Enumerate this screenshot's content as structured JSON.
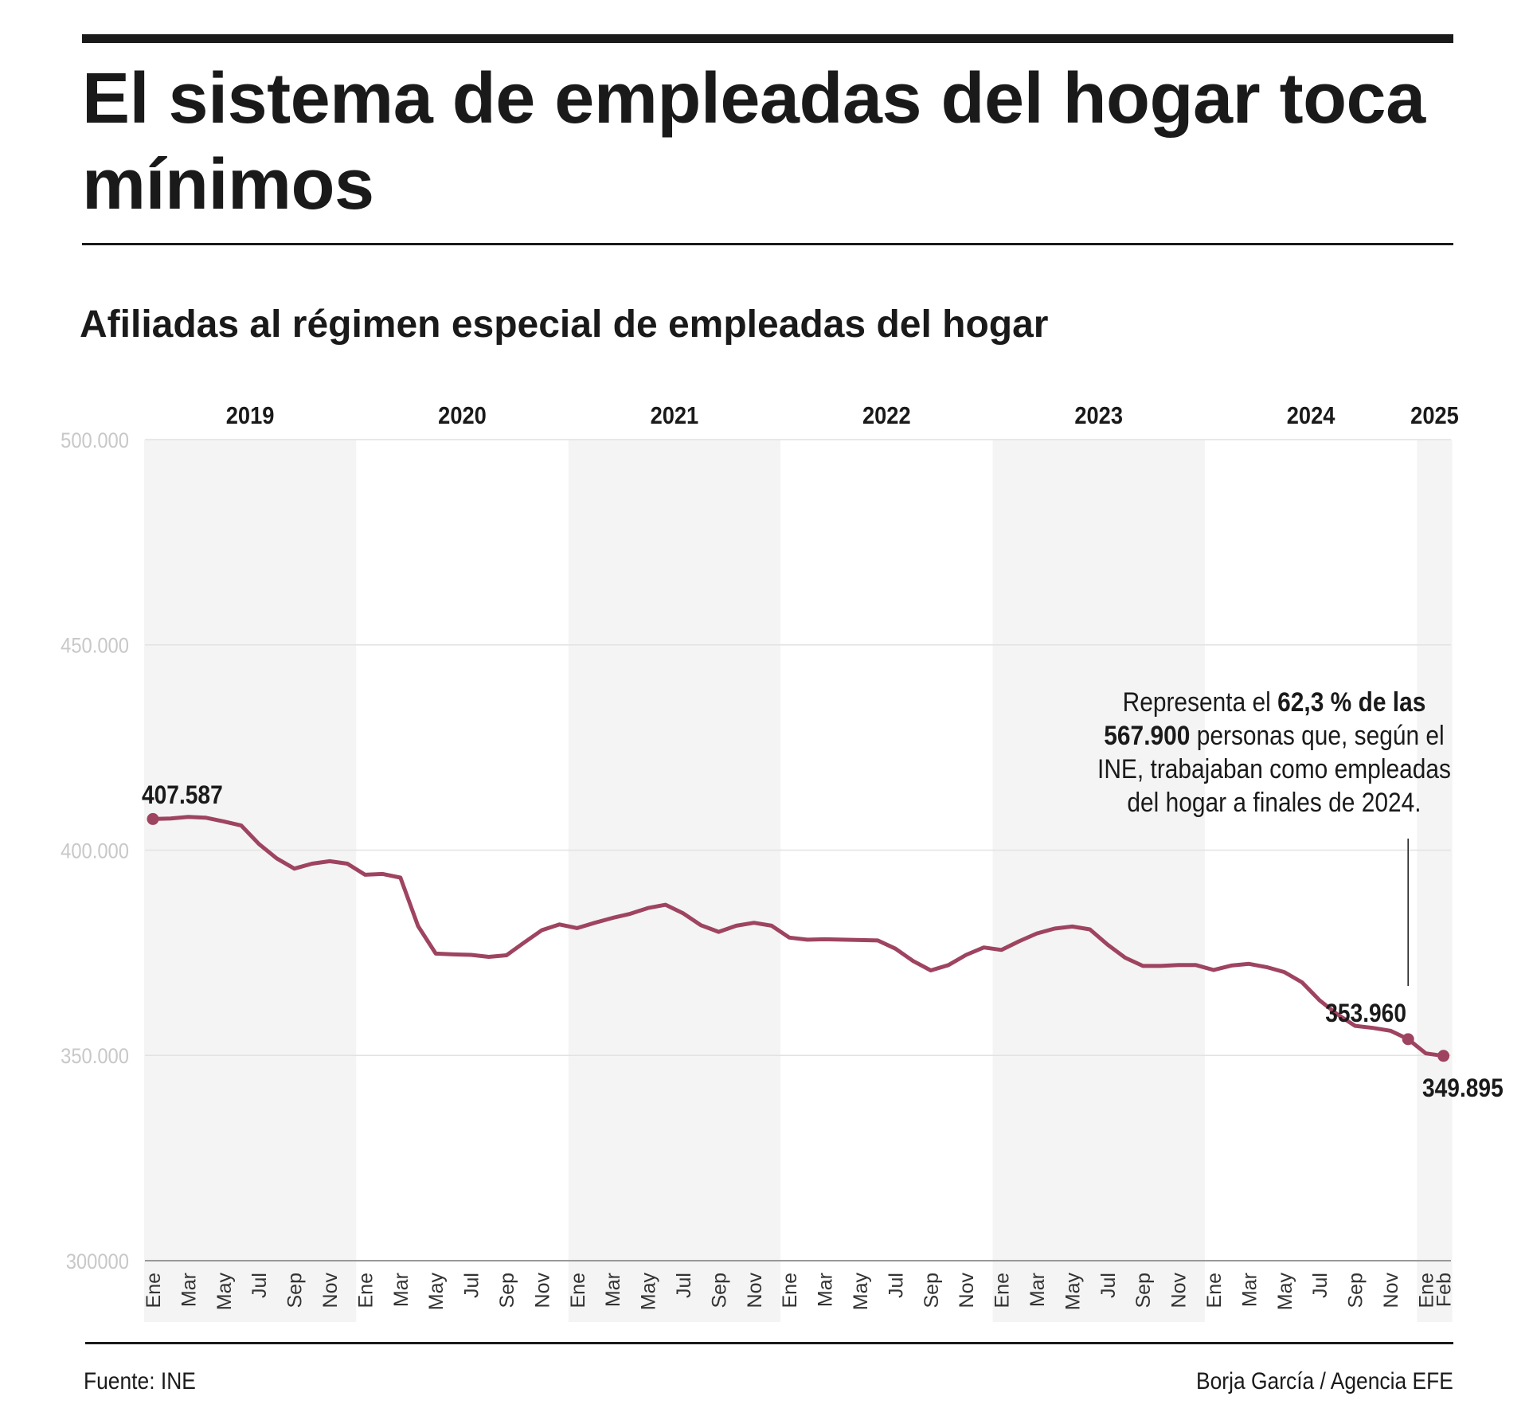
{
  "header": {
    "title": "El sistema de empleadas del hogar toca mínimos",
    "subtitle": "Afiliadas al régimen especial de empleadas del hogar"
  },
  "footer": {
    "source": "Fuente: INE",
    "credit": "Borja García / Agencia EFE"
  },
  "colors": {
    "line": "#9e4460",
    "band": "#f4f4f4",
    "grid": "#e2e2e2",
    "tick_text": "#c8c8c8",
    "month_text": "#333333"
  },
  "chart_data": {
    "type": "line",
    "title": "Afiliadas al régimen especial de empleadas del hogar",
    "ylim": [
      300000,
      500000
    ],
    "y_ticks": [
      {
        "value": 500000,
        "label": "500.000"
      },
      {
        "value": 450000,
        "label": "450.000"
      },
      {
        "value": 400000,
        "label": "400.000"
      },
      {
        "value": 350000,
        "label": "350.000"
      },
      {
        "value": 300000,
        "label": "300000"
      }
    ],
    "grid": true,
    "years": [
      "2019",
      "2020",
      "2021",
      "2022",
      "2023",
      "2024",
      "2025"
    ],
    "month_labels": [
      "Ene",
      "Mar",
      "May",
      "Jul",
      "Sep",
      "Nov",
      "Ene",
      "Mar",
      "May",
      "Jul",
      "Sep",
      "Nov",
      "Ene",
      "Mar",
      "May",
      "Jul",
      "Sep",
      "Nov",
      "Ene",
      "Mar",
      "May",
      "Jul",
      "Sep",
      "Nov",
      "Ene",
      "Mar",
      "May",
      "Jul",
      "Sep",
      "Nov",
      "Ene",
      "Mar",
      "May",
      "Jul",
      "Sep",
      "Nov",
      "Ene",
      "Feb"
    ],
    "series": [
      {
        "values": [
          407587,
          407700,
          408100,
          407900,
          407000,
          406000,
          401500,
          398000,
          395500,
          396700,
          397300,
          396700,
          394000,
          394200,
          393300,
          381500,
          374800,
          374600,
          374500,
          374000,
          374400,
          377500,
          380500,
          381900,
          381000,
          382300,
          383500,
          384500,
          385900,
          386700,
          384600,
          381700,
          380100,
          381600,
          382300,
          381600,
          378700,
          378200,
          378300,
          378200,
          378100,
          378000,
          376000,
          373000,
          370700,
          372000,
          374500,
          376300,
          375700,
          377800,
          379700,
          380900,
          381400,
          380700,
          377000,
          373800,
          371800,
          371800,
          372000,
          372000,
          370800,
          371900,
          372300,
          371500,
          370300,
          367800,
          363400,
          360000,
          357200,
          356700,
          356000,
          353960,
          350500,
          349895
        ]
      }
    ],
    "annotations": {
      "start": {
        "value": "407.587"
      },
      "dec_2024": {
        "value": "353.960"
      },
      "feb_2025": {
        "value": "349.895"
      },
      "note_parts": [
        {
          "text": "Representa el ",
          "bold": false
        },
        {
          "text": "62,3 % de las",
          "bold": true
        },
        {
          "text": "567.900",
          "bold": true
        },
        {
          "text": " personas que, según el",
          "bold": false
        },
        {
          "text": "INE, trabajaban como empleadas",
          "bold": false
        },
        {
          "text": "del hogar a finales de 2024.",
          "bold": false
        }
      ]
    }
  }
}
